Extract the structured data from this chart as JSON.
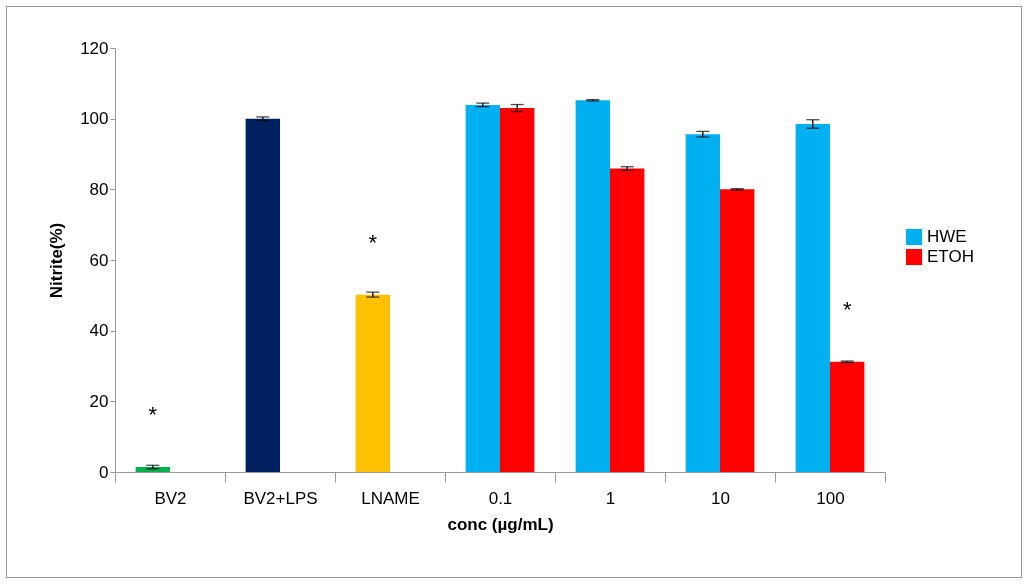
{
  "chart_data": {
    "type": "bar",
    "xlabel": "conc (µg/mL)",
    "ylabel": "Nitrite(%)",
    "categories": [
      "BV2",
      "BV2+LPS",
      "LNAME",
      "0.1",
      "1",
      "10",
      "100"
    ],
    "series": [
      {
        "name": "HWE",
        "color": "#00b0f0",
        "colors": [
          "#00b050",
          "#002060",
          "#ffc000",
          "#00b0f0",
          "#00b0f0",
          "#00b0f0",
          "#00b0f0"
        ],
        "values": [
          1.4,
          100,
          50.2,
          103.9,
          105.2,
          95.6,
          98.5
        ],
        "errors": [
          0.5,
          0.5,
          0.7,
          0.5,
          0.2,
          0.8,
          1.2
        ]
      },
      {
        "name": "ETOH",
        "color": "#ff0000",
        "values": [
          null,
          null,
          null,
          103,
          85.9,
          80,
          31.2
        ],
        "errors": [
          null,
          null,
          null,
          1,
          0.5,
          0.2,
          0.2
        ]
      }
    ],
    "ylim": [
      0,
      120
    ],
    "yticks": [
      0,
      20,
      40,
      60,
      80,
      100,
      120
    ],
    "grid": false,
    "legend": "right",
    "annotations": [
      {
        "text": "*",
        "x": "BV2",
        "y": 1.4
      },
      {
        "text": "*",
        "x": "LNAME",
        "y": 50.2
      },
      {
        "text": "*",
        "x": "100",
        "y": 31.2
      }
    ]
  }
}
